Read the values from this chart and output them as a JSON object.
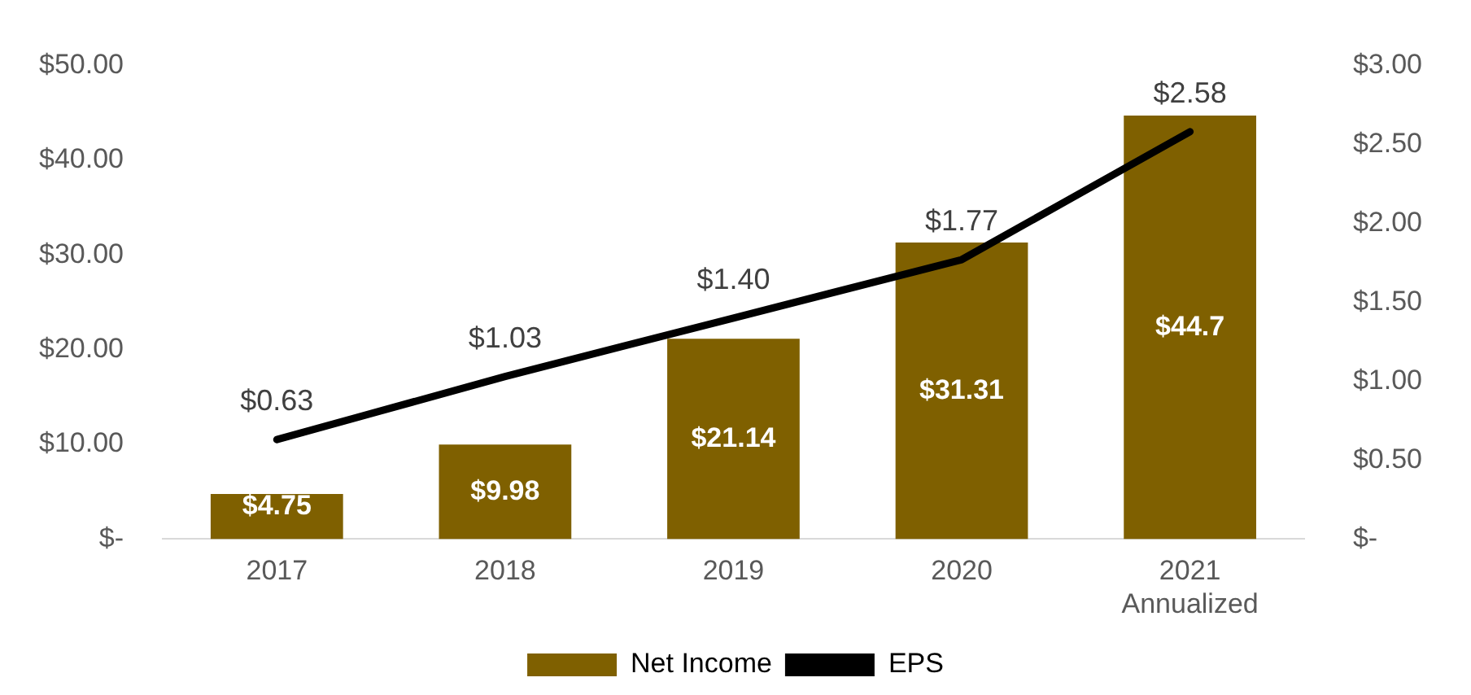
{
  "chart_data": {
    "type": "bar",
    "categories": [
      "2017",
      "2018",
      "2019",
      "2020",
      "2021 Annualized"
    ],
    "series": [
      {
        "name": "Net Income",
        "color": "#7f6000",
        "values": [
          4.75,
          9.98,
          21.14,
          31.31,
          44.7
        ],
        "value_labels": [
          "$4.75",
          "$9.98",
          "$21.14",
          "$31.31",
          "$44.7"
        ]
      },
      {
        "name": "EPS",
        "type": "line",
        "axis": "y2",
        "color": "#000000",
        "values": [
          0.63,
          1.03,
          1.4,
          1.77,
          2.58
        ],
        "value_labels": [
          "$0.63",
          "$1.03",
          "$1.40",
          "$1.77",
          "$2.58"
        ]
      }
    ],
    "ylim": [
      0,
      50
    ],
    "yticks": [
      {
        "value": 0,
        "label": "$-"
      },
      {
        "value": 10,
        "label": "$10.00"
      },
      {
        "value": 20,
        "label": "$20.00"
      },
      {
        "value": 30,
        "label": "$30.00"
      },
      {
        "value": 40,
        "label": "$40.00"
      },
      {
        "value": 50,
        "label": "$50.00"
      }
    ],
    "y2lim": [
      0,
      3
    ],
    "y2ticks": [
      {
        "value": 0,
        "label": "$-"
      },
      {
        "value": 0.5,
        "label": "$0.50"
      },
      {
        "value": 1,
        "label": "$1.00"
      },
      {
        "value": 1.5,
        "label": "$1.50"
      },
      {
        "value": 2,
        "label": "$2.00"
      },
      {
        "value": 2.5,
        "label": "$2.50"
      },
      {
        "value": 3,
        "label": "$3.00"
      }
    ],
    "grid": false,
    "legend": "bottom",
    "marker": "none",
    "line_style": "solid"
  }
}
